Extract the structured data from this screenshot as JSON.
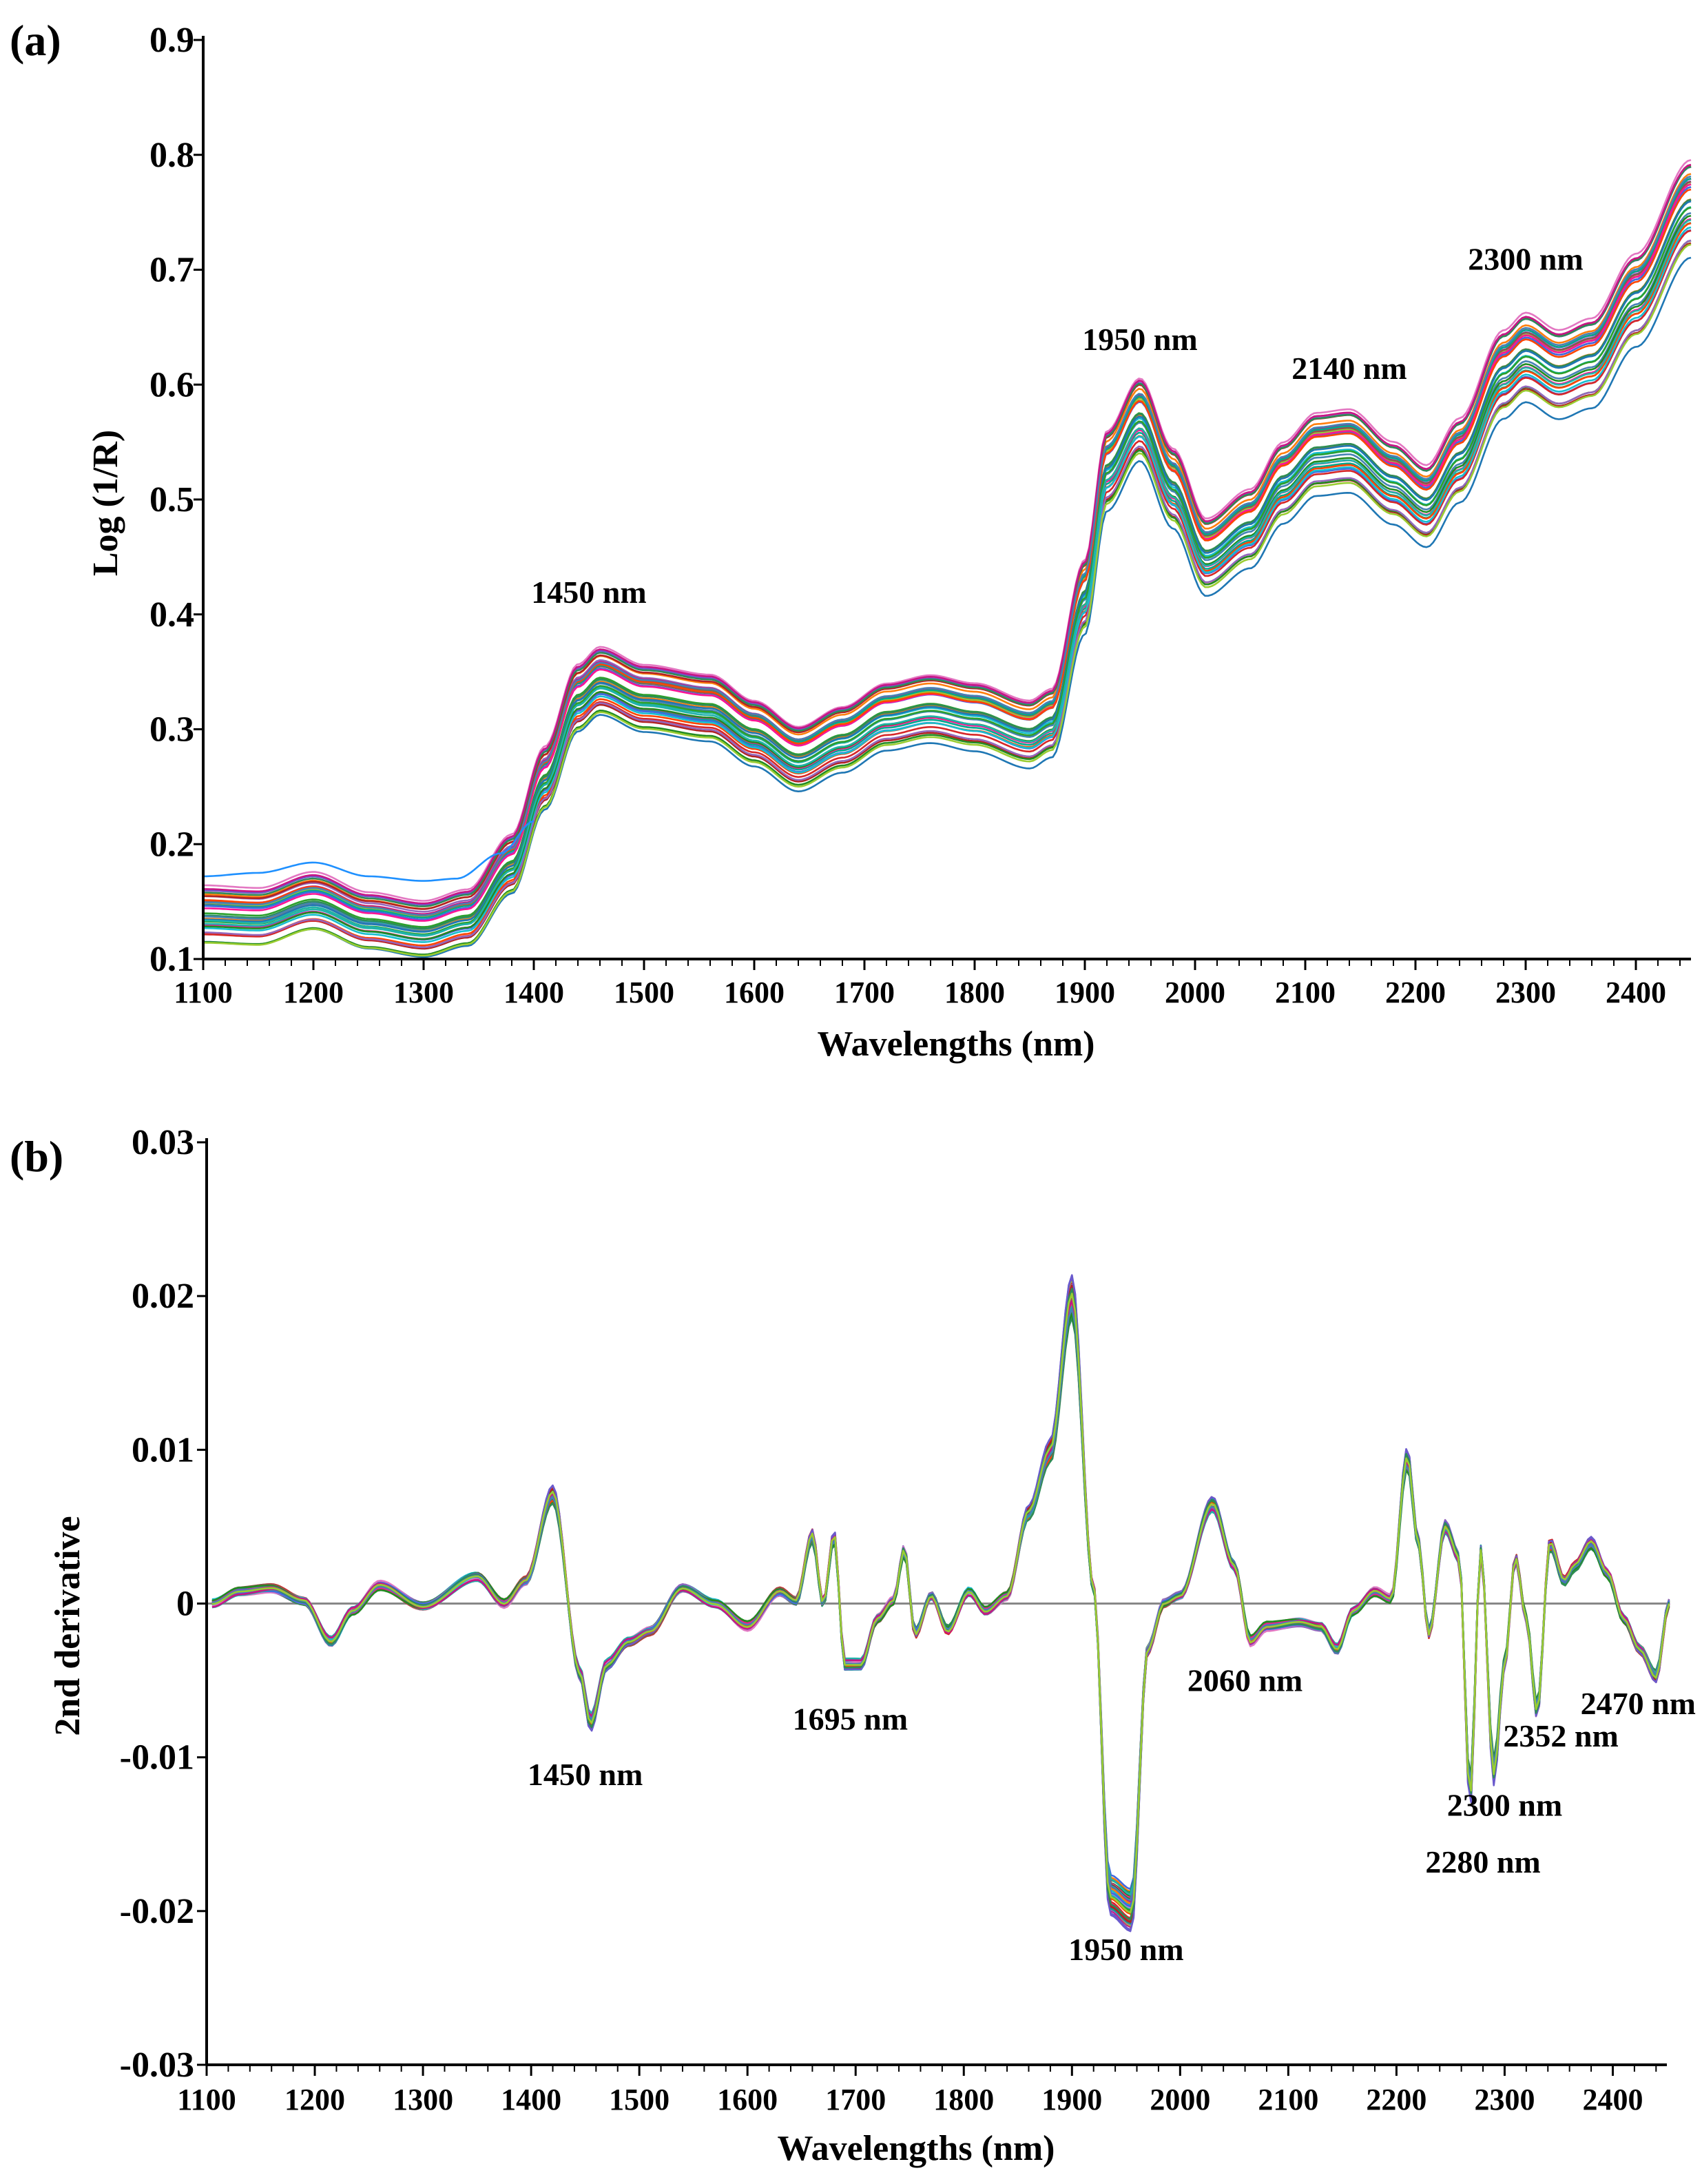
{
  "chart_data": [
    {
      "panel": "(a)",
      "type": "line",
      "title": "",
      "xlabel": "Wavelengths (nm)",
      "ylabel": "Log (1/R)",
      "xlim": [
        1100,
        2450
      ],
      "ylim": [
        0.1,
        0.9
      ],
      "xticks": [
        1100,
        1200,
        1300,
        1400,
        1500,
        1600,
        1700,
        1800,
        1900,
        2000,
        2100,
        2200,
        2300,
        2400
      ],
      "yticks": [
        0.1,
        0.2,
        0.3,
        0.4,
        0.5,
        0.6,
        0.7,
        0.8,
        0.9
      ],
      "ytick_labels": [
        "0.1",
        "0.2",
        "0.3",
        "0.4",
        "0.5",
        "0.6",
        "0.7",
        "0.8",
        "0.9"
      ],
      "grid": false,
      "spectrum_count": 40,
      "mean_spectrum": {
        "x": [
          1100,
          1150,
          1200,
          1250,
          1300,
          1340,
          1380,
          1410,
          1440,
          1460,
          1500,
          1560,
          1600,
          1640,
          1680,
          1720,
          1760,
          1800,
          1850,
          1870,
          1900,
          1920,
          1950,
          1980,
          2010,
          2050,
          2080,
          2110,
          2140,
          2180,
          2210,
          2240,
          2280,
          2300,
          2330,
          2360,
          2400,
          2450
        ],
        "values": [
          0.14,
          0.138,
          0.152,
          0.135,
          0.128,
          0.138,
          0.185,
          0.26,
          0.33,
          0.345,
          0.33,
          0.322,
          0.3,
          0.278,
          0.295,
          0.315,
          0.322,
          0.315,
          0.3,
          0.31,
          0.42,
          0.53,
          0.575,
          0.515,
          0.455,
          0.48,
          0.52,
          0.545,
          0.548,
          0.52,
          0.5,
          0.54,
          0.615,
          0.63,
          0.615,
          0.625,
          0.68,
          0.76
        ]
      },
      "outlier_spectrum": {
        "x": [
          1100,
          1150,
          1200,
          1250,
          1300,
          1330,
          1370,
          1400
        ],
        "values": [
          0.172,
          0.175,
          0.184,
          0.172,
          0.168,
          0.17,
          0.192,
          0.22
        ]
      },
      "annotations": [
        {
          "text": "1450 nm",
          "x": 1450,
          "y": 0.41
        },
        {
          "text": "1950 nm",
          "x": 1950,
          "y": 0.63
        },
        {
          "text": "2140 nm",
          "x": 2140,
          "y": 0.605
        },
        {
          "text": "2300 nm",
          "x": 2300,
          "y": 0.7
        }
      ]
    },
    {
      "panel": "(b)",
      "type": "line",
      "title": "",
      "xlabel": "Wavelengths (nm)",
      "ylabel": "2nd derivative",
      "xlim": [
        1100,
        2450
      ],
      "ylim": [
        -0.03,
        0.03
      ],
      "xticks": [
        1100,
        1200,
        1300,
        1400,
        1500,
        1600,
        1700,
        1800,
        1900,
        2000,
        2100,
        2200,
        2300,
        2400
      ],
      "yticks": [
        -0.03,
        -0.02,
        -0.01,
        0,
        0.01,
        0.02,
        0.03
      ],
      "ytick_labels": [
        "-0.03",
        "-0.02",
        "-0.01",
        "0",
        "0.01",
        "0.02",
        "0.03"
      ],
      "grid": false,
      "spectrum_count": 40,
      "mean_spectrum": {
        "x": [
          1105,
          1130,
          1160,
          1190,
          1215,
          1235,
          1260,
          1300,
          1350,
          1375,
          1395,
          1420,
          1445,
          1455,
          1470,
          1490,
          1510,
          1540,
          1570,
          1600,
          1630,
          1645,
          1660,
          1670,
          1680,
          1690,
          1705,
          1720,
          1735,
          1745,
          1755,
          1770,
          1785,
          1805,
          1820,
          1840,
          1860,
          1880,
          1900,
          1920,
          1935,
          1955,
          1970,
          1985,
          2000,
          2030,
          2050,
          2065,
          2080,
          2110,
          2130,
          2145,
          2160,
          2180,
          2195,
          2210,
          2220,
          2230,
          2245,
          2258,
          2268,
          2278,
          2290,
          2300,
          2310,
          2320,
          2330,
          2342,
          2355,
          2365,
          2380,
          2395,
          2410,
          2425,
          2440,
          2452
        ],
        "values": [
          0.0,
          0.0008,
          0.001,
          0.0002,
          -0.0025,
          -0.0005,
          0.0012,
          -0.0002,
          0.0018,
          0.0,
          0.0015,
          0.0072,
          -0.0045,
          -0.0078,
          -0.004,
          -0.0025,
          -0.0018,
          0.001,
          0.0,
          -0.0015,
          0.0008,
          0.0002,
          0.0045,
          0.0,
          0.0045,
          -0.004,
          -0.004,
          -0.001,
          0.0002,
          0.0035,
          -0.002,
          0.0005,
          -0.0018,
          0.0008,
          -0.0005,
          0.0005,
          0.006,
          0.01,
          0.02,
          0.001,
          -0.019,
          -0.02,
          -0.003,
          0.0,
          0.0005,
          0.0065,
          0.0025,
          -0.0025,
          -0.0015,
          -0.0012,
          -0.0015,
          -0.003,
          -0.0005,
          0.0008,
          0.0003,
          0.0095,
          0.004,
          -0.002,
          0.005,
          0.003,
          -0.0125,
          0.0035,
          -0.011,
          -0.004,
          0.003,
          -0.001,
          -0.007,
          0.004,
          0.0015,
          0.0025,
          0.004,
          0.002,
          -0.001,
          -0.003,
          -0.0048,
          0.0
        ]
      },
      "annotations": [
        {
          "text": "1450 nm",
          "x": 1450,
          "y": -0.0118
        },
        {
          "text": "1695 nm",
          "x": 1695,
          "y": -0.0082
        },
        {
          "text": "1950 nm",
          "x": 1950,
          "y": -0.0232
        },
        {
          "text": "2060 nm",
          "x": 2060,
          "y": -0.0057
        },
        {
          "text": "2280 nm",
          "x": 2280,
          "y": -0.0175
        },
        {
          "text": "2300 nm",
          "x": 2300,
          "y": -0.0138
        },
        {
          "text": "2352 nm",
          "x": 2352,
          "y": -0.0093
        },
        {
          "text": "2470 nm",
          "x": 2470,
          "y": -0.0072
        }
      ]
    }
  ],
  "colors": {
    "spectra": [
      "#1f77b4",
      "#d62728",
      "#2ca02c",
      "#9467bd",
      "#e377c2",
      "#17becf",
      "#ff7f0e",
      "#8c564b",
      "#00a88f",
      "#b22222",
      "#4169e1",
      "#ff1493",
      "#228b22",
      "#20b2aa",
      "#6a5acd",
      "#ff4500",
      "#2e8b57",
      "#c71585",
      "#4682b4",
      "#9acd32"
    ],
    "outlier": "#1e90ff",
    "zero_line": "#888888",
    "axis": "#000000"
  }
}
